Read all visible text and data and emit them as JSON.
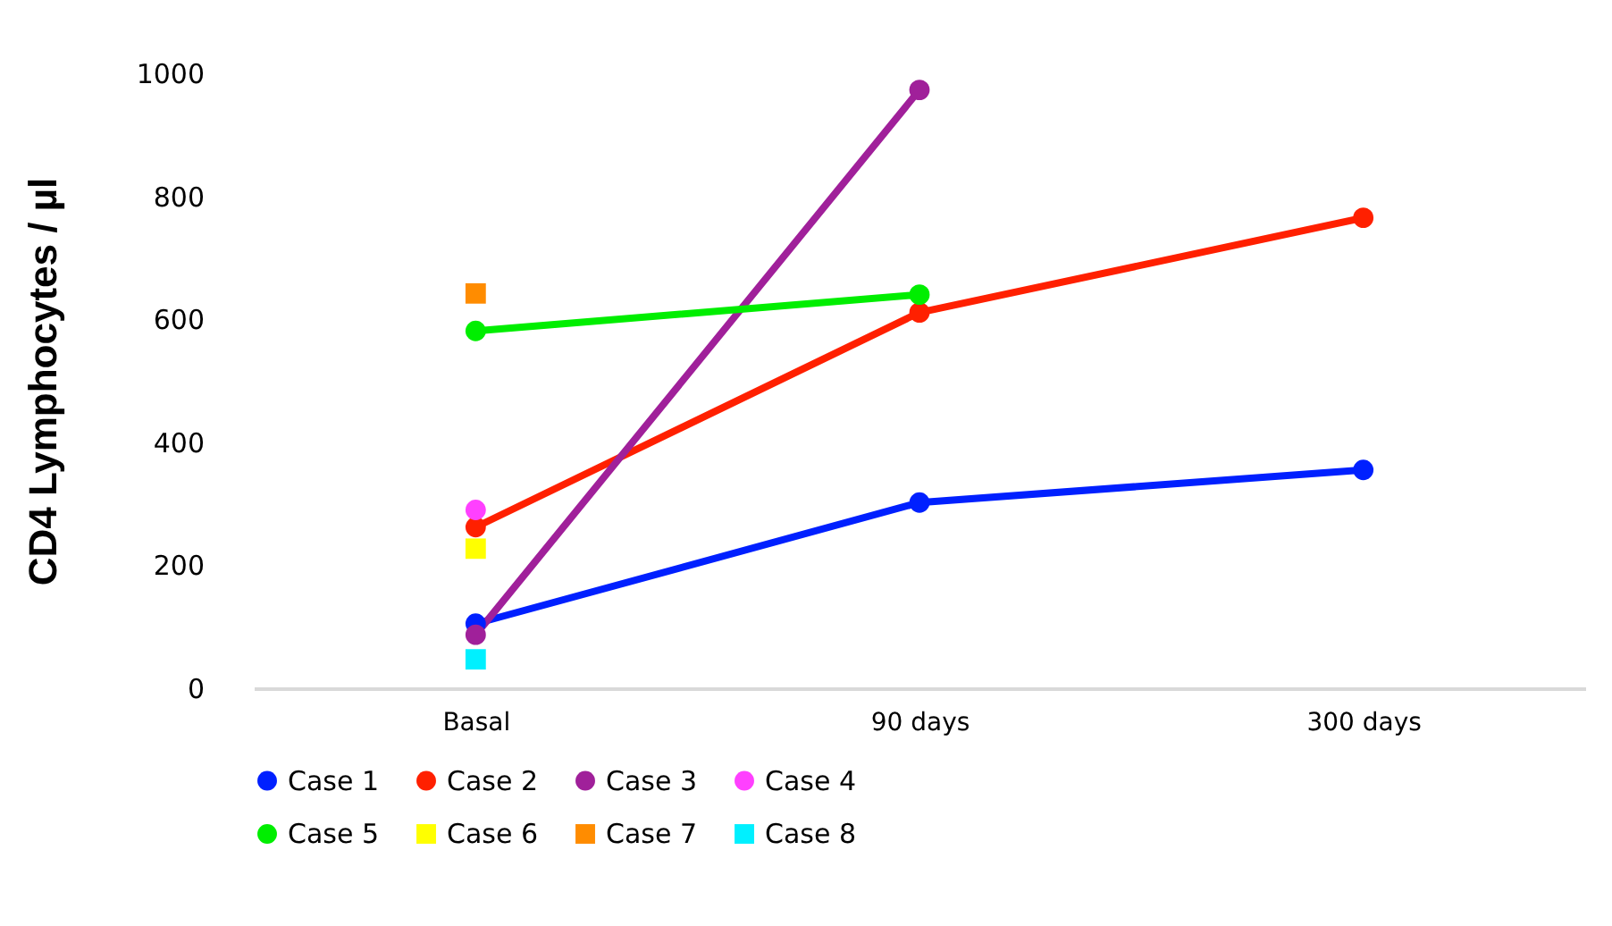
{
  "chart_data": {
    "type": "line",
    "ylabel": "CD4 Lymphocytes / µl",
    "categories": [
      "Basal",
      "90 days",
      "300 days"
    ],
    "ylim": [
      0,
      1000
    ],
    "yticks": [
      0,
      200,
      400,
      600,
      800,
      1000
    ],
    "grid": false,
    "legend": "bottom",
    "series": [
      {
        "name": "Case 1",
        "color": "#0020ff",
        "marker": "circle",
        "values": [
          105,
          302,
          355
        ]
      },
      {
        "name": "Case 2",
        "color": "#ff2000",
        "marker": "circle",
        "values": [
          262,
          611,
          765
        ]
      },
      {
        "name": "Case 3",
        "color": "#a0209a",
        "marker": "circle",
        "values": [
          87,
          973,
          null
        ]
      },
      {
        "name": "Case 4",
        "color": "#ff40ff",
        "marker": "circle",
        "values": [
          290,
          null,
          null
        ]
      },
      {
        "name": "Case 5",
        "color": "#00ee00",
        "marker": "circle",
        "values": [
          581,
          640,
          null
        ]
      },
      {
        "name": "Case 6",
        "color": "#ffff00",
        "marker": "square",
        "values": [
          227,
          null,
          null
        ]
      },
      {
        "name": "Case 7",
        "color": "#ff8c00",
        "marker": "square",
        "values": [
          642,
          null,
          null
        ]
      },
      {
        "name": "Case 8",
        "color": "#00f0ff",
        "marker": "square",
        "values": [
          47,
          null,
          null
        ]
      }
    ]
  }
}
